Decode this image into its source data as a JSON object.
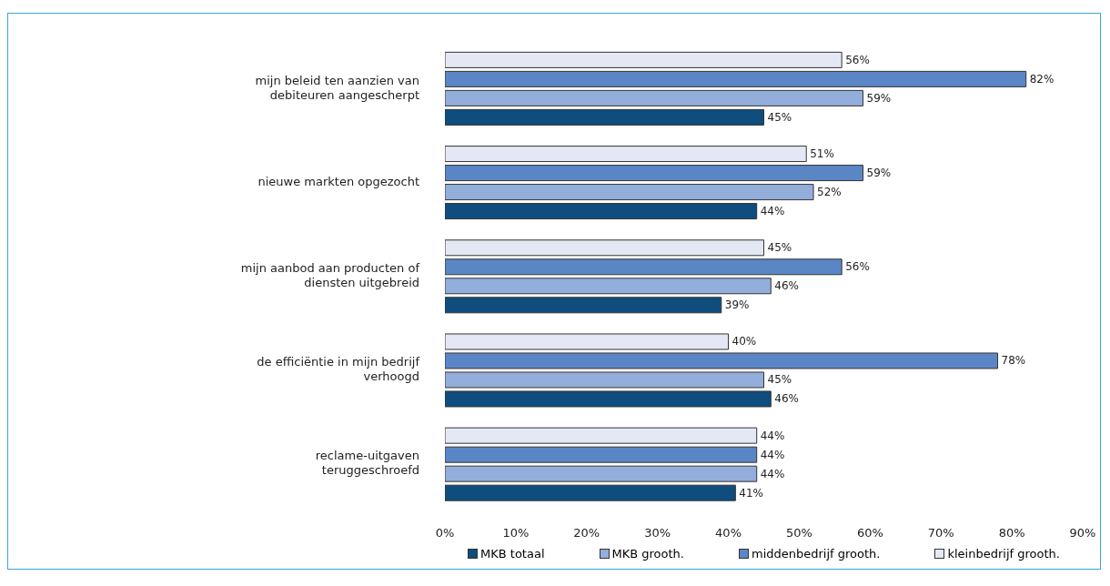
{
  "chart_data": {
    "type": "bar",
    "orientation": "horizontal",
    "categories": [
      "mijn beleid ten aanzien van debiteuren aangescherpt",
      "nieuwe markten opgezocht",
      "mijn aanbod aan producten of diensten uitgebreid",
      "de efficiëntie in mijn bedrijf verhoogd",
      "reclame-uitgaven teruggeschroefd"
    ],
    "series": [
      {
        "name": "MKB totaal",
        "color": "#0e4d7d",
        "values": [
          45,
          44,
          39,
          46,
          41
        ],
        "value_labels": [
          "45%",
          "44%",
          "39%",
          "46%",
          "41%"
        ]
      },
      {
        "name": "MKB grooth.",
        "color": "#93aedb",
        "values": [
          59,
          52,
          46,
          45,
          44
        ],
        "value_labels": [
          "59%",
          "52%",
          "46%",
          "45%",
          "44%"
        ]
      },
      {
        "name": "middenbedrijf grooth.",
        "color": "#5b86c5",
        "values": [
          82,
          59,
          56,
          78,
          44
        ],
        "value_labels": [
          "82%",
          "59%",
          "56%",
          "78%",
          "44%"
        ]
      },
      {
        "name": "kleinbedrijf grooth.",
        "color": "#e3e8f4",
        "values": [
          56,
          51,
          45,
          40,
          44
        ],
        "value_labels": [
          "56%",
          "51%",
          "45%",
          "40%",
          "44%"
        ]
      }
    ],
    "xlim": [
      0,
      90
    ],
    "xticks": [
      {
        "value": 0,
        "label": "0%"
      },
      {
        "value": 10,
        "label": "10%"
      },
      {
        "value": 20,
        "label": "20%"
      },
      {
        "value": 30,
        "label": "30%"
      },
      {
        "value": 40,
        "label": "40%"
      },
      {
        "value": 50,
        "label": "50%"
      },
      {
        "value": 60,
        "label": "60%"
      },
      {
        "value": 70,
        "label": "70%"
      },
      {
        "value": 80,
        "label": "80%"
      },
      {
        "value": 90,
        "label": "90%"
      }
    ],
    "grid": false,
    "legend": "bottom"
  }
}
